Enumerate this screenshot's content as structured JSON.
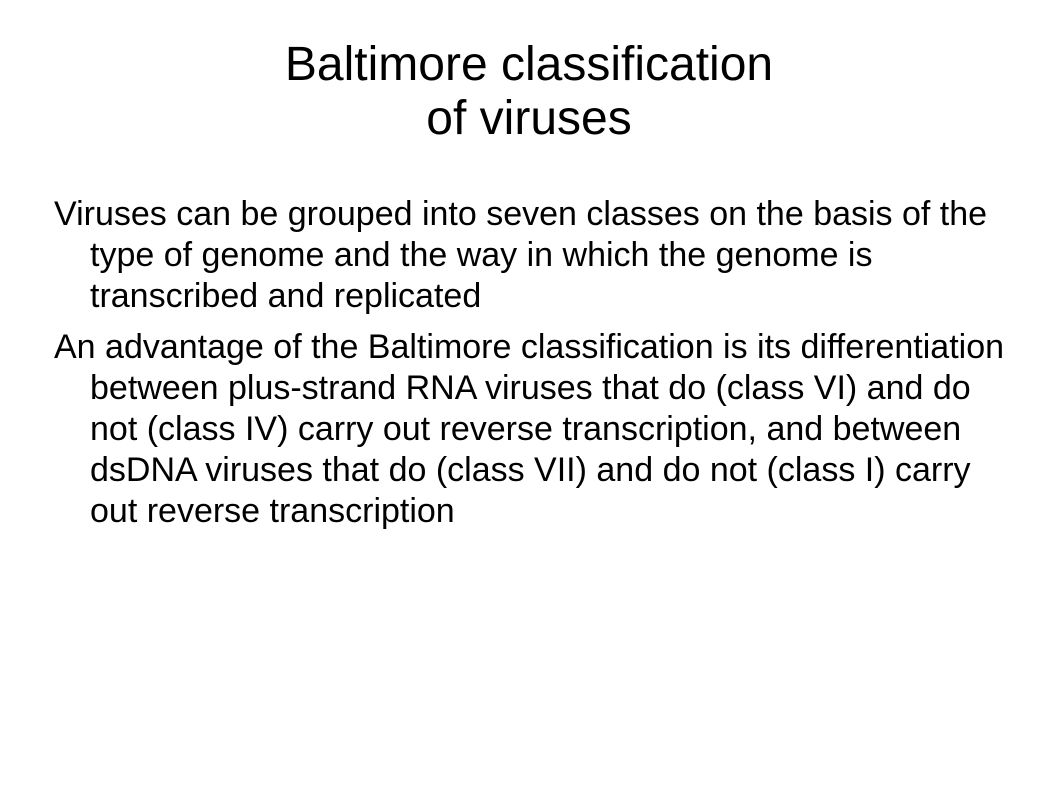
{
  "slide": {
    "title_line1": "Baltimore classification",
    "title_line2": "of viruses",
    "bullets": [
      "Viruses can be grouped into seven classes on the basis of the type of genome and the way in which the genome is transcribed and replicated",
      "An advantage of the Baltimore classification is its differentiation between plus-strand RNA viruses that do (class VI) and do not (class IV) carry out reverse transcription, and between dsDNA viruses that do (class VII) and do not (class I) carry out reverse transcription"
    ]
  }
}
